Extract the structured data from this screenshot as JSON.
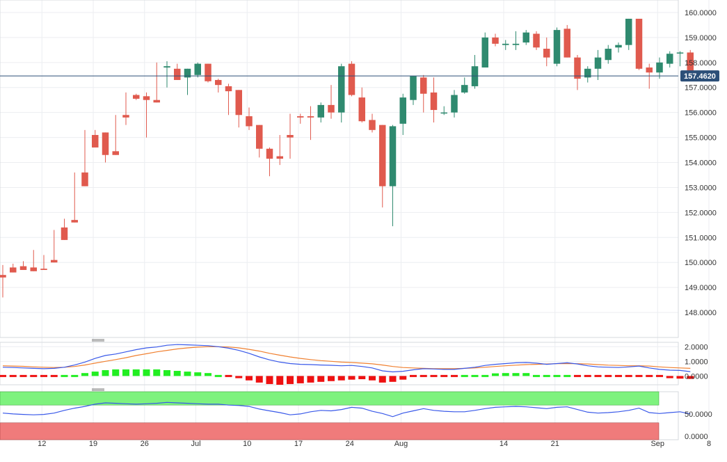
{
  "chart_data": {
    "type": "candlestick",
    "main": {
      "y_ticks": [
        "160.0000",
        "159.0000",
        "158.0000",
        "157.0000",
        "156.0000",
        "155.0000",
        "154.0000",
        "153.0000",
        "152.0000",
        "151.0000",
        "150.0000",
        "149.0000",
        "148.0000"
      ],
      "ylim": [
        147.0,
        160.5
      ],
      "last_price": "157.4620",
      "last_price_value": 157.462,
      "grid": true,
      "candles": [
        [
          149.5,
          149.9,
          149.4,
          148.6
        ],
        [
          149.8,
          149.95,
          149.6,
          149.6
        ],
        [
          149.85,
          150.05,
          149.7,
          149.7
        ],
        [
          149.8,
          150.5,
          149.65,
          149.7
        ],
        [
          149.75,
          150.3,
          149.7,
          149.9
        ],
        [
          150.1,
          151.3,
          150.0,
          150.0
        ],
        [
          151.4,
          151.75,
          150.9,
          151.0
        ],
        [
          151.7,
          153.6,
          151.6,
          151.7
        ],
        [
          153.6,
          155.3,
          153.05,
          153.1
        ],
        [
          155.1,
          155.3,
          154.6,
          155.2
        ],
        [
          155.2,
          155.2,
          154.3,
          154.0
        ],
        [
          154.45,
          155.9,
          154.3,
          154.3
        ],
        [
          155.9,
          156.8,
          155.8,
          155.5
        ],
        [
          156.7,
          156.75,
          156.55,
          156.5
        ],
        [
          156.65,
          156.8,
          156.5,
          155.0
        ],
        [
          156.5,
          158.0,
          156.4,
          156.4
        ],
        [
          157.8,
          158.05,
          157.85,
          157.0
        ],
        [
          157.75,
          157.95,
          157.3,
          157.3
        ],
        [
          157.4,
          157.7,
          157.75,
          156.7
        ],
        [
          157.5,
          158.0,
          157.95,
          157.4
        ],
        [
          157.95,
          157.9,
          157.25,
          157.2
        ],
        [
          157.3,
          157.35,
          157.1,
          156.8
        ],
        [
          157.05,
          157.15,
          156.85,
          155.9
        ],
        [
          156.9,
          156.9,
          155.9,
          155.4
        ],
        [
          155.85,
          156.2,
          155.45,
          155.3
        ],
        [
          155.5,
          155.5,
          154.55,
          154.2
        ],
        [
          154.55,
          154.6,
          154.15,
          153.45
        ],
        [
          154.25,
          155.1,
          154.15,
          153.9
        ],
        [
          155.1,
          155.95,
          155.0,
          154.15
        ],
        [
          155.85,
          155.95,
          155.8,
          155.55
        ],
        [
          155.85,
          156.25,
          155.8,
          154.9
        ],
        [
          155.8,
          156.4,
          156.3,
          155.6
        ],
        [
          156.3,
          157.1,
          156.0,
          155.75
        ],
        [
          156.0,
          157.95,
          157.85,
          155.6
        ],
        [
          157.95,
          158.05,
          156.7,
          156.65
        ],
        [
          156.6,
          157.0,
          155.65,
          155.6
        ],
        [
          155.7,
          155.95,
          155.3,
          155.2
        ],
        [
          155.5,
          155.5,
          153.05,
          152.2
        ],
        [
          153.05,
          155.5,
          155.45,
          151.45
        ],
        [
          155.55,
          156.75,
          156.6,
          155.1
        ],
        [
          156.5,
          157.4,
          157.45,
          156.3
        ],
        [
          157.4,
          157.5,
          156.75,
          156.0
        ],
        [
          156.8,
          157.4,
          156.1,
          155.6
        ],
        [
          156.0,
          156.25,
          156.0,
          155.9
        ],
        [
          156.0,
          156.9,
          156.7,
          155.8
        ],
        [
          156.8,
          157.4,
          157.1,
          156.75
        ],
        [
          157.05,
          158.3,
          157.85,
          156.95
        ],
        [
          157.8,
          159.2,
          159.0,
          157.8
        ],
        [
          159.0,
          159.15,
          158.75,
          158.65
        ],
        [
          158.7,
          158.9,
          158.75,
          158.5
        ],
        [
          158.7,
          159.25,
          158.75,
          158.5
        ],
        [
          158.8,
          159.3,
          159.2,
          158.7
        ],
        [
          159.15,
          159.25,
          158.6,
          158.5
        ],
        [
          158.55,
          159.0,
          158.2,
          157.85
        ],
        [
          157.95,
          159.4,
          159.3,
          157.85
        ],
        [
          159.35,
          159.5,
          158.2,
          158.2
        ],
        [
          158.2,
          158.3,
          157.35,
          156.9
        ],
        [
          157.4,
          157.85,
          157.75,
          157.2
        ],
        [
          157.75,
          158.5,
          158.2,
          157.3
        ],
        [
          158.1,
          158.7,
          158.55,
          157.95
        ],
        [
          158.6,
          158.8,
          158.7,
          158.4
        ],
        [
          158.7,
          159.75,
          159.75,
          158.5
        ],
        [
          159.75,
          159.7,
          157.75,
          157.7
        ],
        [
          157.8,
          157.95,
          157.6,
          156.95
        ],
        [
          157.6,
          158.2,
          158.0,
          157.35
        ],
        [
          157.95,
          158.45,
          158.35,
          157.8
        ],
        [
          158.4,
          158.45,
          158.4,
          157.85
        ],
        [
          158.4,
          158.5,
          157.46,
          157.45
        ]
      ]
    },
    "oscillator1": {
      "y_ticks": [
        "2.0000",
        "1.0000",
        "0.0000"
      ],
      "ylim": [
        -0.6,
        2.3
      ],
      "line_blue": [
        0.6,
        0.58,
        0.55,
        0.52,
        0.5,
        0.52,
        0.6,
        0.75,
        0.95,
        1.2,
        1.4,
        1.5,
        1.65,
        1.8,
        1.92,
        1.98,
        2.1,
        2.15,
        2.13,
        2.1,
        2.07,
        2.0,
        1.9,
        1.75,
        1.55,
        1.3,
        1.1,
        0.95,
        0.85,
        0.8,
        0.78,
        0.75,
        0.73,
        0.7,
        0.72,
        0.65,
        0.55,
        0.35,
        0.28,
        0.32,
        0.42,
        0.5,
        0.48,
        0.45,
        0.45,
        0.52,
        0.6,
        0.72,
        0.8,
        0.85,
        0.9,
        0.92,
        0.88,
        0.8,
        0.85,
        0.9,
        0.82,
        0.7,
        0.62,
        0.6,
        0.58,
        0.62,
        0.68,
        0.55,
        0.45,
        0.4,
        0.38,
        0.3
      ],
      "line_orange": [
        0.7,
        0.68,
        0.66,
        0.62,
        0.6,
        0.58,
        0.6,
        0.65,
        0.75,
        0.88,
        1.0,
        1.12,
        1.25,
        1.4,
        1.52,
        1.65,
        1.75,
        1.85,
        1.92,
        1.97,
        2.0,
        2.0,
        1.98,
        1.92,
        1.82,
        1.7,
        1.55,
        1.42,
        1.3,
        1.2,
        1.12,
        1.05,
        1.0,
        0.95,
        0.92,
        0.88,
        0.83,
        0.75,
        0.65,
        0.58,
        0.55,
        0.52,
        0.5,
        0.5,
        0.5,
        0.52,
        0.55,
        0.6,
        0.65,
        0.7,
        0.74,
        0.78,
        0.8,
        0.82,
        0.84,
        0.85,
        0.84,
        0.82,
        0.78,
        0.74,
        0.72,
        0.7,
        0.7,
        0.68,
        0.62,
        0.58,
        0.55,
        0.52
      ],
      "histogram": [
        -0.1,
        -0.1,
        -0.1,
        -0.1,
        -0.1,
        -0.06,
        0.0,
        0.1,
        0.2,
        0.3,
        0.4,
        0.45,
        0.45,
        0.45,
        0.45,
        0.45,
        0.4,
        0.35,
        0.3,
        0.25,
        0.2,
        0.0,
        -0.05,
        -0.15,
        -0.3,
        -0.45,
        -0.55,
        -0.6,
        -0.55,
        -0.5,
        -0.45,
        -0.4,
        -0.35,
        -0.3,
        -0.25,
        -0.22,
        -0.3,
        -0.45,
        -0.4,
        -0.25,
        -0.1,
        -0.05,
        -0.02,
        -0.02,
        -0.02,
        0.03,
        0.05,
        0.12,
        0.18,
        0.2,
        0.2,
        0.2,
        0.1,
        0.02,
        0.03,
        0.05,
        -0.05,
        -0.1,
        -0.12,
        -0.12,
        -0.12,
        -0.1,
        -0.05,
        -0.1,
        -0.12,
        -0.15,
        -0.18,
        -0.2
      ]
    },
    "oscillator2": {
      "y_ticks": [
        "50.0000",
        "0.0000"
      ],
      "ylim": [
        -8,
        100
      ],
      "upper_band": 70,
      "lower_band": 30,
      "line": [
        52,
        50,
        49,
        48,
        49,
        52,
        58,
        63,
        67,
        72,
        75,
        74,
        73,
        72,
        73,
        74,
        76,
        75,
        74,
        73,
        72,
        72,
        70,
        69,
        67,
        61,
        57,
        53,
        48,
        50,
        55,
        58,
        57,
        60,
        65,
        63,
        56,
        51,
        44,
        52,
        57,
        62,
        58,
        56,
        55,
        55,
        58,
        62,
        65,
        66,
        67,
        66,
        64,
        62,
        65,
        66,
        60,
        54,
        52,
        53,
        55,
        58,
        63,
        53,
        51,
        53,
        55,
        50
      ]
    },
    "x_ticks": [
      {
        "label": "12",
        "index": 3
      },
      {
        "label": "19",
        "index": 8
      },
      {
        "label": "26",
        "index": 13
      },
      {
        "label": "Jul",
        "index": 18
      },
      {
        "label": "10",
        "index": 23
      },
      {
        "label": "17",
        "index": 28
      },
      {
        "label": "24",
        "index": 33
      },
      {
        "label": "Aug",
        "index": 38
      },
      {
        "label": "14",
        "index": 48
      },
      {
        "label": "21",
        "index": 53
      },
      {
        "label": "Sep",
        "index": 63
      },
      {
        "label": "8",
        "index": 68
      }
    ],
    "colors": {
      "up": "#2f8a6f",
      "down": "#e05a4e",
      "blue": "#3858e9",
      "orange": "#f08030",
      "hist_up": "#22ee22",
      "hist_down": "#ee1111",
      "band_green": "#7ef27e",
      "band_red": "#f07b7b",
      "price_line": "#2c4f78",
      "price_tag": "#2c4f78"
    }
  }
}
